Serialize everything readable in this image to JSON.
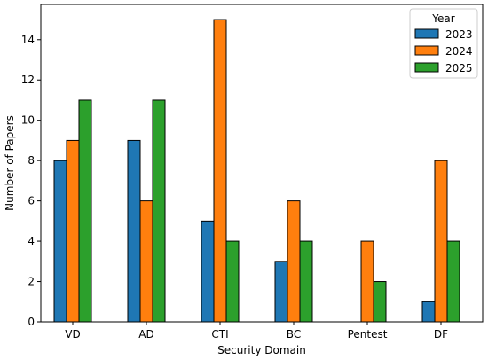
{
  "chart_data": {
    "type": "bar",
    "categories": [
      "VD",
      "AD",
      "CTI",
      "BC",
      "Pentest",
      "DF"
    ],
    "series": [
      {
        "name": "2023",
        "color": "#1f77b4",
        "values": [
          8,
          9,
          5,
          3,
          0,
          1
        ]
      },
      {
        "name": "2024",
        "color": "#ff7f0e",
        "values": [
          9,
          6,
          15,
          6,
          4,
          8
        ]
      },
      {
        "name": "2025",
        "color": "#2ca02c",
        "values": [
          11,
          11,
          4,
          4,
          2,
          4
        ]
      }
    ],
    "xlabel": "Security Domain",
    "ylabel": "Number of Papers",
    "ylim": [
      0,
      15.75
    ],
    "yticks": [
      0,
      2,
      4,
      6,
      8,
      10,
      12,
      14
    ],
    "legend": {
      "title": "Year",
      "placement": "top-right"
    },
    "grid": false
  }
}
